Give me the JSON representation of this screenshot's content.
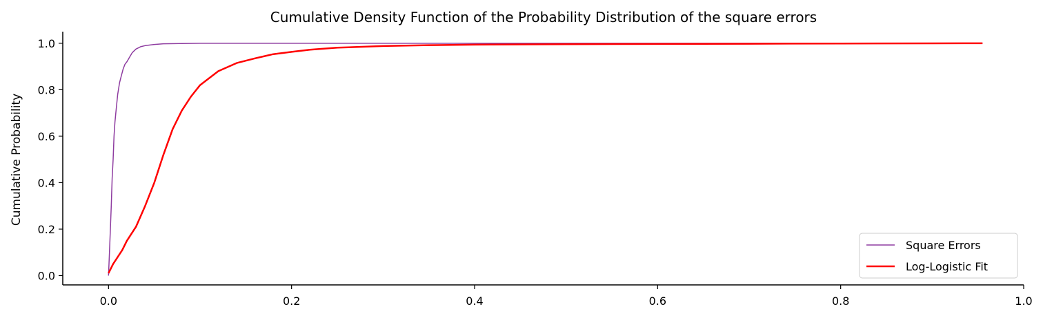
{
  "chart_data": {
    "type": "line",
    "title": "Cumulative Density Function of the Probability Distribution of the square errors",
    "xlabel": "",
    "ylabel": "Cumulative Probability",
    "xlim": [
      -0.05,
      1.0
    ],
    "ylim": [
      -0.04,
      1.05
    ],
    "xticks": [
      "0.0",
      "0.2",
      "0.4",
      "0.6",
      "0.8",
      "1.0"
    ],
    "yticks": [
      "0.0",
      "0.2",
      "0.4",
      "0.6",
      "0.8",
      "1.0"
    ],
    "grid": false,
    "legend_position": "lower-right",
    "series": [
      {
        "name": "Square Errors",
        "color": "#8e3ca0",
        "x": [
          0.0,
          0.001,
          0.002,
          0.003,
          0.004,
          0.005,
          0.006,
          0.007,
          0.008,
          0.01,
          0.012,
          0.014,
          0.016,
          0.018,
          0.02,
          0.023,
          0.026,
          0.03,
          0.035,
          0.04,
          0.05,
          0.06,
          0.08,
          0.1,
          0.2,
          0.4,
          0.6,
          0.8,
          0.955
        ],
        "y": [
          0.0,
          0.1,
          0.2,
          0.3,
          0.42,
          0.5,
          0.6,
          0.66,
          0.7,
          0.78,
          0.83,
          0.86,
          0.89,
          0.91,
          0.92,
          0.94,
          0.96,
          0.975,
          0.985,
          0.99,
          0.995,
          0.998,
          0.999,
          1.0,
          1.0,
          1.0,
          1.0,
          1.0,
          1.0
        ]
      },
      {
        "name": "Log-Logistic Fit",
        "color": "#ff0000",
        "x": [
          0.0,
          0.005,
          0.01,
          0.015,
          0.02,
          0.03,
          0.04,
          0.05,
          0.06,
          0.07,
          0.08,
          0.09,
          0.1,
          0.11,
          0.12,
          0.14,
          0.16,
          0.18,
          0.2,
          0.22,
          0.25,
          0.3,
          0.35,
          0.4,
          0.5,
          0.6,
          0.7,
          0.8,
          0.9,
          0.955
        ],
        "y": [
          0.01,
          0.05,
          0.08,
          0.11,
          0.15,
          0.21,
          0.3,
          0.4,
          0.52,
          0.63,
          0.71,
          0.77,
          0.82,
          0.85,
          0.88,
          0.915,
          0.935,
          0.953,
          0.963,
          0.972,
          0.981,
          0.988,
          0.992,
          0.994,
          0.996,
          0.997,
          0.998,
          0.999,
          0.9995,
          1.0
        ]
      }
    ]
  }
}
